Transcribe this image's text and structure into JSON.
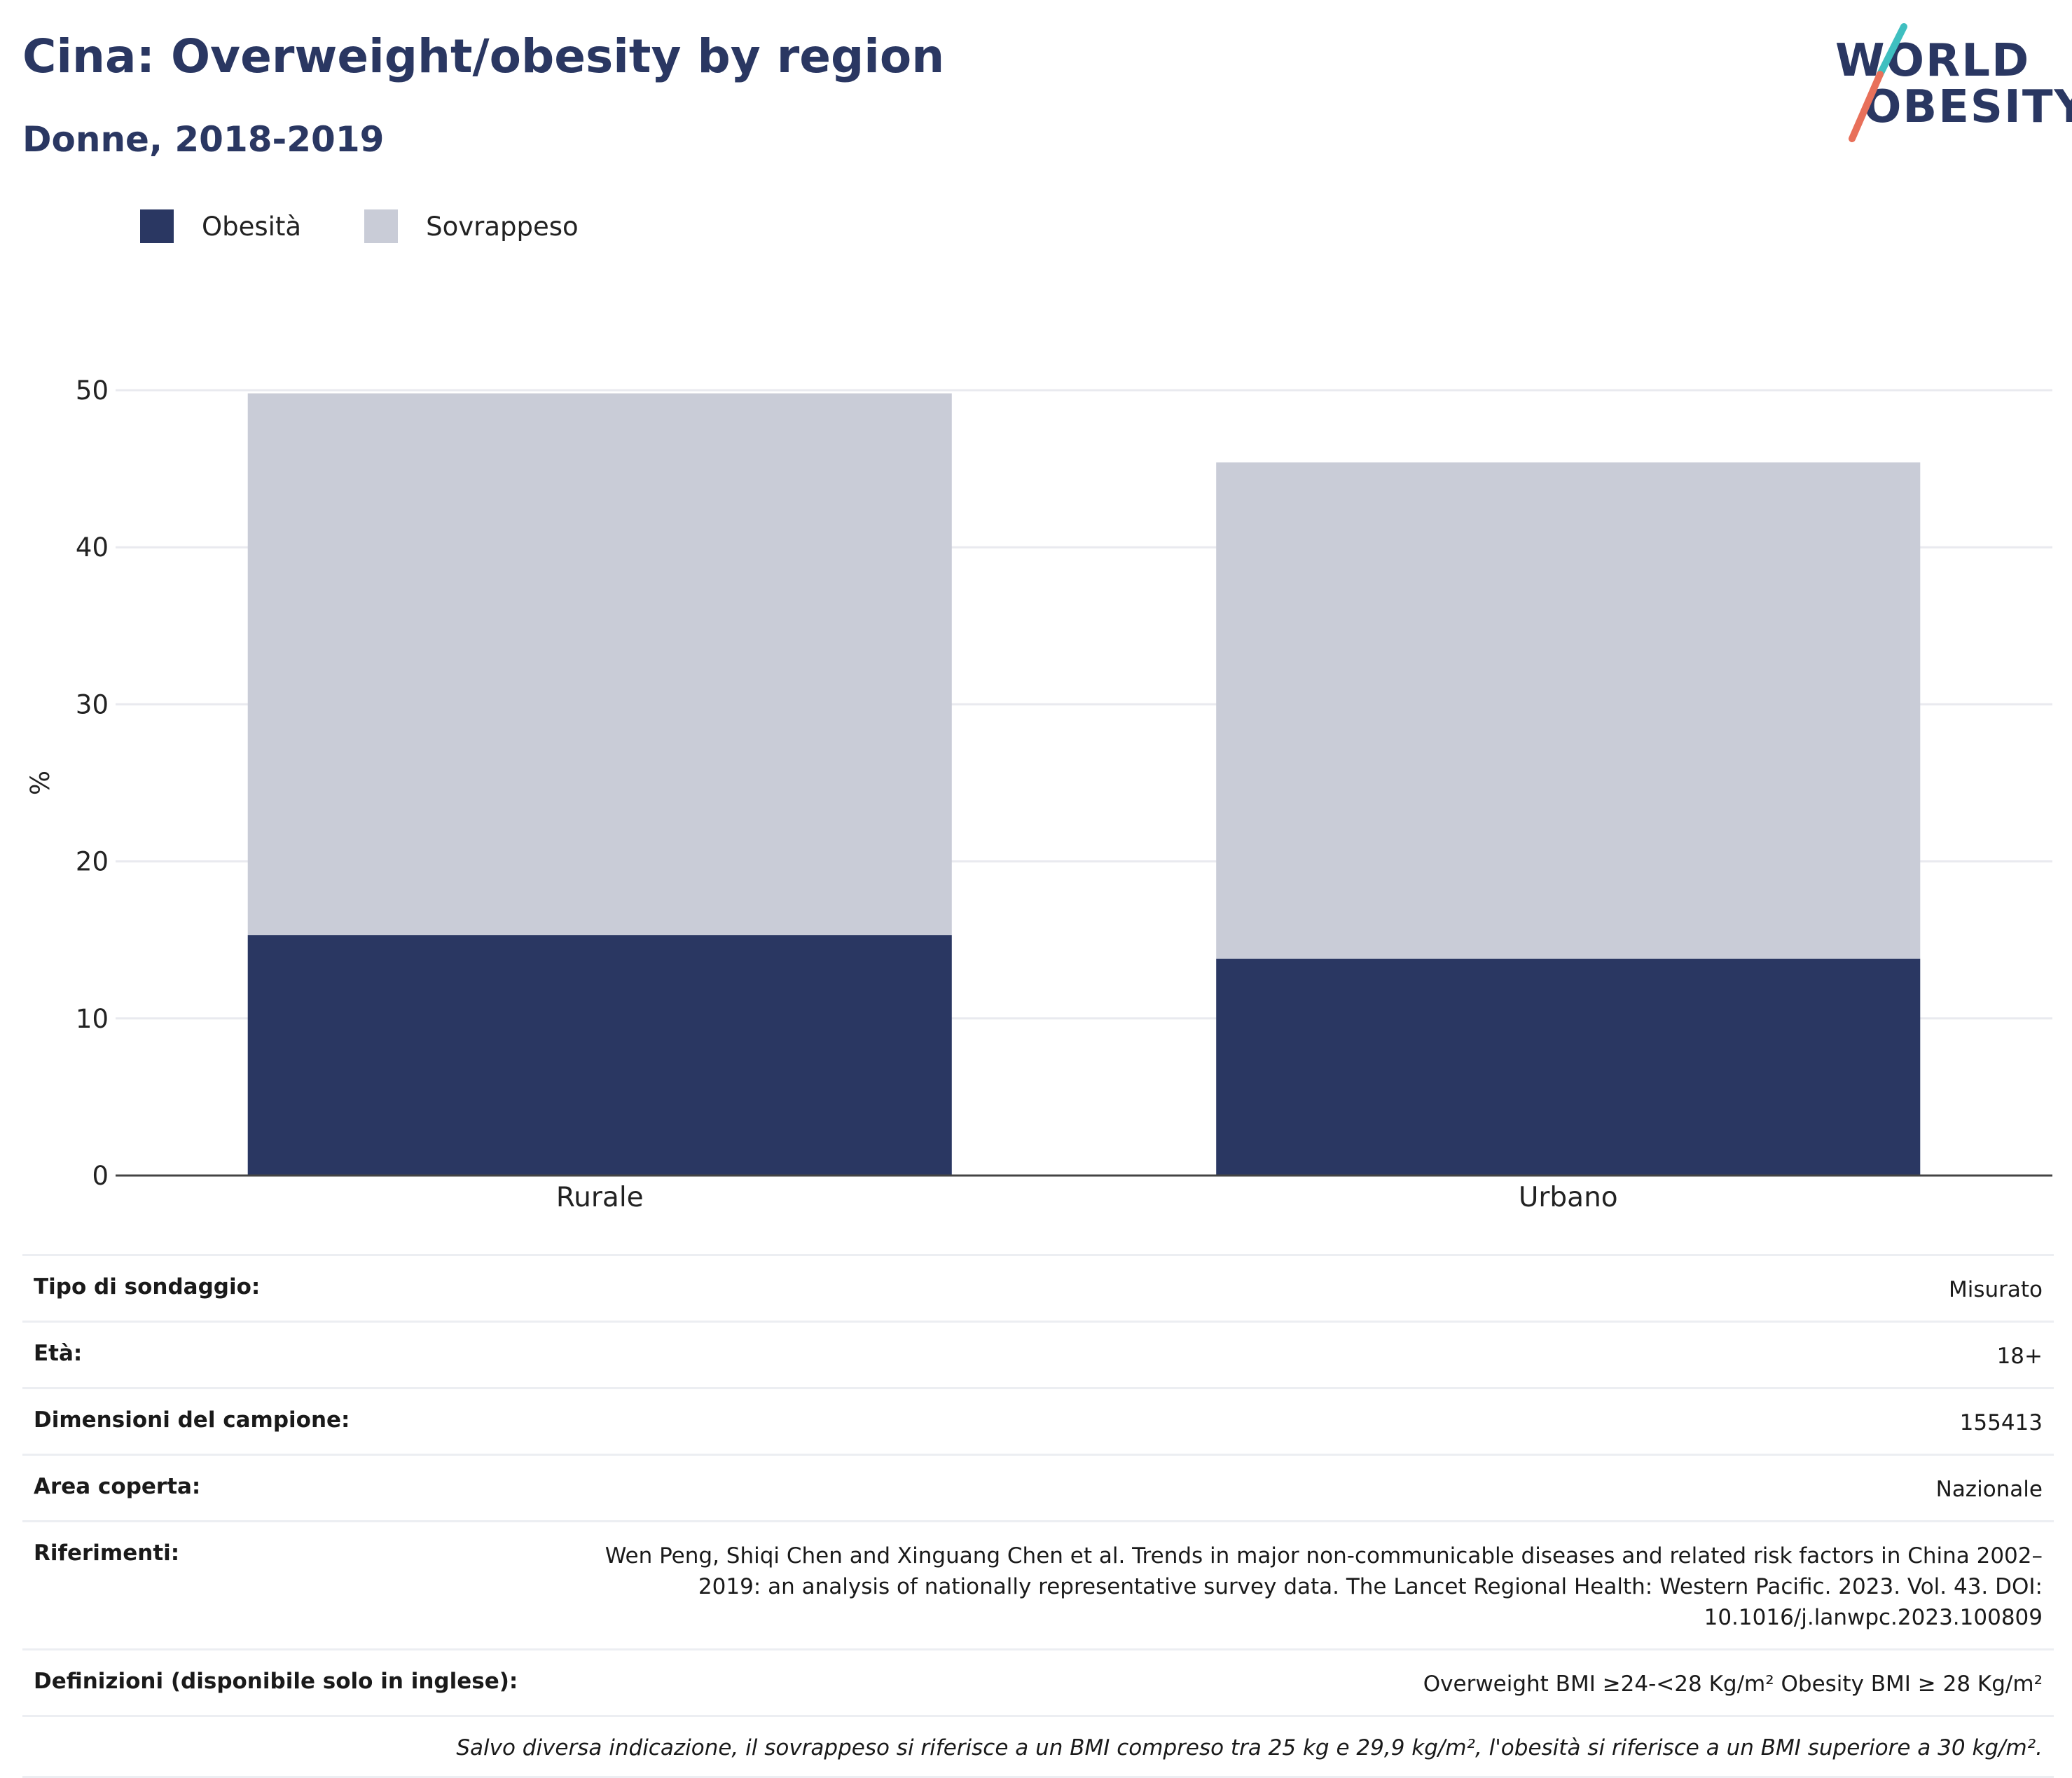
{
  "header": {
    "title": "Cina: Overweight/obesity by region",
    "subtitle": "Donne, 2018-2019"
  },
  "logo": {
    "line1": "WORLD",
    "line2": "OBESITY"
  },
  "legend": [
    {
      "label": "Obesità",
      "color": "#2a3762"
    },
    {
      "label": "Sovrappeso",
      "color": "#c9ccd7"
    }
  ],
  "chart_data": {
    "type": "bar",
    "stacked": true,
    "categories": [
      "Rurale",
      "Urbano"
    ],
    "series": [
      {
        "name": "Obesità",
        "values": [
          15.3,
          13.8
        ],
        "color": "#2a3762"
      },
      {
        "name": "Sovrappeso",
        "values": [
          34.5,
          31.6
        ],
        "color": "#c9ccd7"
      }
    ],
    "ylabel": "%",
    "ylim": [
      0,
      50
    ],
    "yticks": [
      0,
      10,
      20,
      30,
      40,
      50
    ],
    "grid": true
  },
  "info": {
    "rows": [
      {
        "label": "Tipo di sondaggio:",
        "value": "Misurato"
      },
      {
        "label": "Età:",
        "value": "18+"
      },
      {
        "label": "Dimensioni del campione:",
        "value": "155413"
      },
      {
        "label": "Area coperta:",
        "value": "Nazionale"
      },
      {
        "label": "Riferimenti:",
        "value": "Wen Peng, Shiqi Chen and Xinguang Chen et al. Trends in major non-communicable diseases and related risk factors in China 2002–2019: an analysis of nationally representative survey data. The Lancet Regional Health: Western Pacific. 2023. Vol. 43. DOI: 10.1016/j.lanwpc.2023.100809"
      },
      {
        "label": "Definizioni (disponibile solo in inglese):",
        "value": "Overweight BMI ≥24-<28 Kg/m² Obesity BMI ≥ 28 Kg/m²"
      }
    ],
    "note": "Salvo diversa indicazione, il sovrappeso si riferisce a un BMI compreso tra 25 kg e 29,9 kg/m², l'obesità si riferisce a un BMI superiore a 30 kg/m²."
  }
}
